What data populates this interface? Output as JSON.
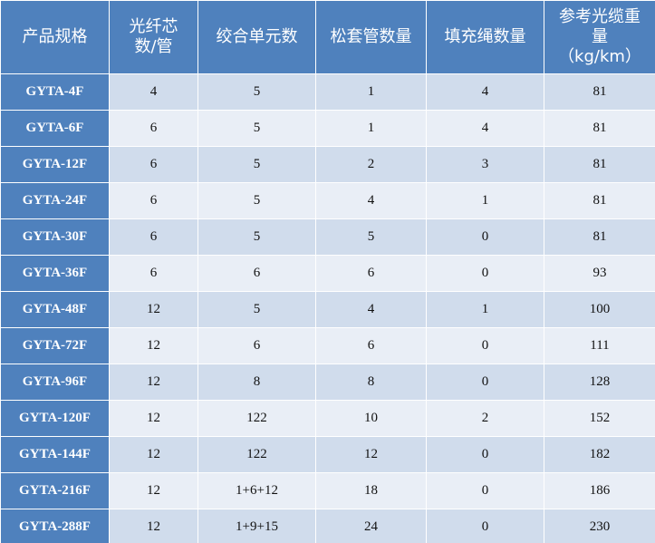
{
  "table": {
    "header": [
      [
        "产品规格"
      ],
      [
        "光纤芯",
        "数/管"
      ],
      [
        "绞合单元数"
      ],
      [
        "松套管数量"
      ],
      [
        "填充绳数量"
      ],
      [
        "参考光缆重",
        "量",
        "（kg/km）"
      ]
    ],
    "rows": [
      [
        "GYTA-4F",
        "4",
        "5",
        "1",
        "4",
        "81"
      ],
      [
        "GYTA-6F",
        "6",
        "5",
        "1",
        "4",
        "81"
      ],
      [
        "GYTA-12F",
        "6",
        "5",
        "2",
        "3",
        "81"
      ],
      [
        "GYTA-24F",
        "6",
        "5",
        "4",
        "1",
        "81"
      ],
      [
        "GYTA-30F",
        "6",
        "5",
        "5",
        "0",
        "81"
      ],
      [
        "GYTA-36F",
        "6",
        "6",
        "6",
        "0",
        "93"
      ],
      [
        "GYTA-48F",
        "12",
        "5",
        "4",
        "1",
        "100"
      ],
      [
        "GYTA-72F",
        "12",
        "6",
        "6",
        "0",
        "111"
      ],
      [
        "GYTA-96F",
        "12",
        "8",
        "8",
        "0",
        "128"
      ],
      [
        "GYTA-120F",
        "12",
        "122",
        "10",
        "2",
        "152"
      ],
      [
        "GYTA-144F",
        "12",
        "122",
        "12",
        "0",
        "182"
      ],
      [
        "GYTA-216F",
        "12",
        "1+6+12",
        "18",
        "0",
        "186"
      ],
      [
        "GYTA-288F",
        "12",
        "1+9+15",
        "24",
        "0",
        "230"
      ]
    ]
  }
}
